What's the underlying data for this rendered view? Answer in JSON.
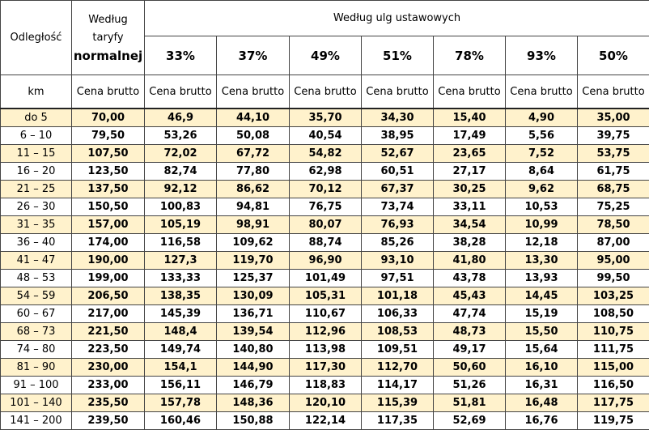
{
  "header": {
    "distance": "Odległość",
    "tariff_line1": "Według taryfy",
    "tariff_line2": "normalnej",
    "discounts": "Według ulg ustawowych",
    "percents": [
      "33%",
      "37%",
      "49%",
      "51%",
      "78%",
      "93%",
      "50%"
    ],
    "unit": "km",
    "price_labels": [
      "Cena brutto",
      "Cena brutto",
      "Cena brutto",
      "Cena brutto",
      "Cena brutto",
      "Cena brutto",
      "Cena brutto",
      "Cena brutto"
    ]
  },
  "table": {
    "rows": [
      [
        "do 5",
        "70,00",
        "46,9",
        "44,10",
        "35,70",
        "34,30",
        "15,40",
        "4,90",
        "35,00"
      ],
      [
        "6 – 10",
        "79,50",
        "53,26",
        "50,08",
        "40,54",
        "38,95",
        "17,49",
        "5,56",
        "39,75"
      ],
      [
        "11 – 15",
        "107,50",
        "72,02",
        "67,72",
        "54,82",
        "52,67",
        "23,65",
        "7,52",
        "53,75"
      ],
      [
        "16 – 20",
        "123,50",
        "82,74",
        "77,80",
        "62,98",
        "60,51",
        "27,17",
        "8,64",
        "61,75"
      ],
      [
        "21 – 25",
        "137,50",
        "92,12",
        "86,62",
        "70,12",
        "67,37",
        "30,25",
        "9,62",
        "68,75"
      ],
      [
        "26 – 30",
        "150,50",
        "100,83",
        "94,81",
        "76,75",
        "73,74",
        "33,11",
        "10,53",
        "75,25"
      ],
      [
        "31 – 35",
        "157,00",
        "105,19",
        "98,91",
        "80,07",
        "76,93",
        "34,54",
        "10,99",
        "78,50"
      ],
      [
        "36 – 40",
        "174,00",
        "116,58",
        "109,62",
        "88,74",
        "85,26",
        "38,28",
        "12,18",
        "87,00"
      ],
      [
        "41 – 47",
        "190,00",
        "127,3",
        "119,70",
        "96,90",
        "93,10",
        "41,80",
        "13,30",
        "95,00"
      ],
      [
        "48 – 53",
        "199,00",
        "133,33",
        "125,37",
        "101,49",
        "97,51",
        "43,78",
        "13,93",
        "99,50"
      ],
      [
        "54 – 59",
        "206,50",
        "138,35",
        "130,09",
        "105,31",
        "101,18",
        "45,43",
        "14,45",
        "103,25"
      ],
      [
        "60 – 67",
        "217,00",
        "145,39",
        "136,71",
        "110,67",
        "106,33",
        "47,74",
        "15,19",
        "108,50"
      ],
      [
        "68 – 73",
        "221,50",
        "148,4",
        "139,54",
        "112,96",
        "108,53",
        "48,73",
        "15,50",
        "110,75"
      ],
      [
        "74 – 80",
        "223,50",
        "149,74",
        "140,80",
        "113,98",
        "109,51",
        "49,17",
        "15,64",
        "111,75"
      ],
      [
        "81 – 90",
        "230,00",
        "154,1",
        "144,90",
        "117,30",
        "112,70",
        "50,60",
        "16,10",
        "115,00"
      ],
      [
        "91 – 100",
        "233,00",
        "156,11",
        "146,79",
        "118,83",
        "114,17",
        "51,26",
        "16,31",
        "116,50"
      ],
      [
        "101 – 140",
        "235,50",
        "157,78",
        "148,36",
        "120,10",
        "115,39",
        "51,81",
        "16,48",
        "117,75"
      ],
      [
        "141 – 200",
        "239,50",
        "160,46",
        "150,88",
        "122,14",
        "117,35",
        "52,69",
        "16,76",
        "119,75"
      ]
    ]
  }
}
